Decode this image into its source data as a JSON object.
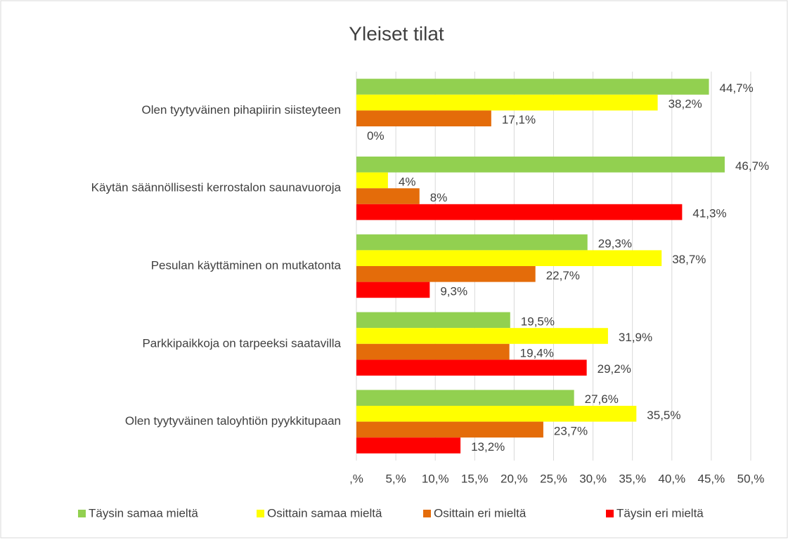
{
  "chart_data": {
    "type": "hbar",
    "title": "Yleiset tilat",
    "categories": [
      "Olen tyytyväinen pihapiirin siisteyteen",
      "Käytän säännöllisesti kerrostalon saunavuoroja",
      "Pesulan käyttäminen on mutkatonta",
      "Parkkipaikkoja on tarpeeksi saatavilla",
      "Olen tyytyväinen taloyhtiön pyykkitupaan"
    ],
    "series": [
      {
        "name": "Täysin samaa mieltä",
        "color": "#92d050",
        "values": [
          44.7,
          46.7,
          29.3,
          19.5,
          27.6
        ],
        "value_labels": [
          "44,7%",
          "46,7%",
          "29,3%",
          "19,5%",
          "27,6%"
        ]
      },
      {
        "name": "Osittain samaa mieltä",
        "color": "#ffff00",
        "values": [
          38.2,
          4,
          38.7,
          31.9,
          35.5
        ],
        "value_labels": [
          "38,2%",
          "4%",
          "38,7%",
          "31,9%",
          "35,5%"
        ]
      },
      {
        "name": "Osittain eri mieltä",
        "color": "#e46c0a",
        "values": [
          17.1,
          8,
          22.7,
          19.4,
          23.7
        ],
        "value_labels": [
          "17,1%",
          "8%",
          "22,7%",
          "19,4%",
          "23,7%"
        ]
      },
      {
        "name": "Täysin eri mieltä",
        "color": "#ff0000",
        "values": [
          0,
          41.3,
          9.3,
          29.2,
          13.2
        ],
        "value_labels": [
          "0%",
          "41,3%",
          "9,3%",
          "29,2%",
          "13,2%"
        ]
      }
    ],
    "xlim": [
      0,
      50
    ],
    "xticks": [
      {
        "value": 0,
        "label": ",%"
      },
      {
        "value": 5,
        "label": "5,%"
      },
      {
        "value": 10,
        "label": "10,%"
      },
      {
        "value": 15,
        "label": "15,%"
      },
      {
        "value": 20,
        "label": "20,%"
      },
      {
        "value": 25,
        "label": "25,%"
      },
      {
        "value": 30,
        "label": "30,%"
      },
      {
        "value": 35,
        "label": "35,%"
      },
      {
        "value": 40,
        "label": "40,%"
      },
      {
        "value": 45,
        "label": "45,%"
      },
      {
        "value": 50,
        "label": "50,%"
      }
    ],
    "grid": true,
    "legend": "bottom"
  }
}
